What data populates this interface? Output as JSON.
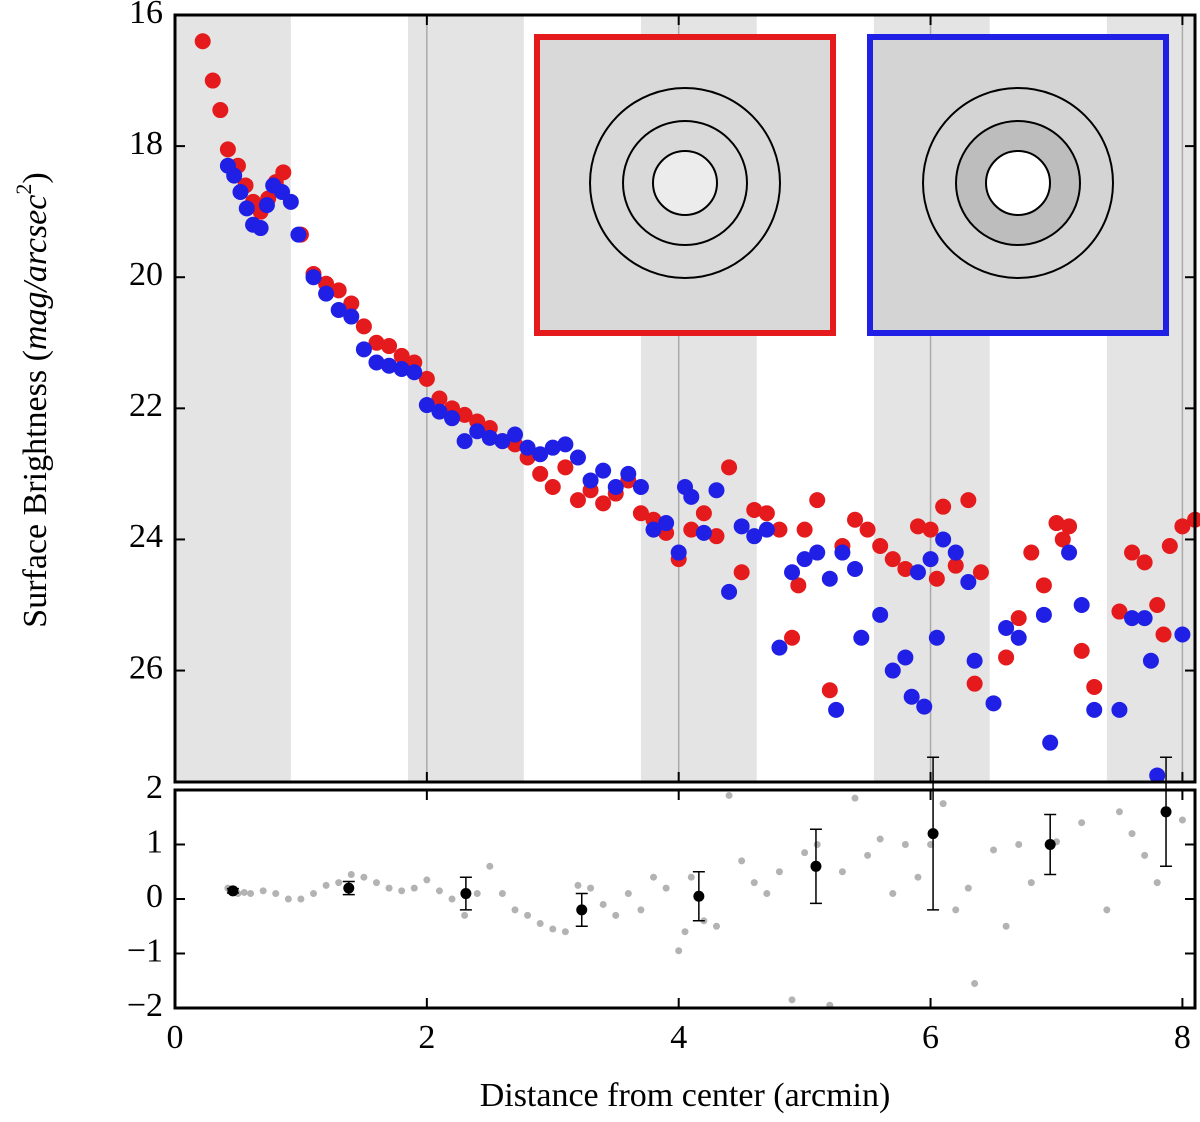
{
  "chart_data": [
    {
      "type": "scatter",
      "ylabel": "Surface Brightness (",
      "ylabel_unit": "mag/arcsec",
      "ylabel_sup": "2",
      "ylabel_end": ")",
      "xlim": [
        0,
        8.1
      ],
      "xticks": [
        0,
        2,
        4,
        6,
        8
      ],
      "ylim": [
        27.7,
        16
      ],
      "yticks": [
        16,
        18,
        20,
        22,
        24,
        26
      ],
      "y_inverted": true,
      "grid": true,
      "bands": [
        [
          0,
          0.92
        ],
        [
          1.85,
          2.77
        ],
        [
          3.7,
          4.62
        ],
        [
          5.55,
          6.47
        ],
        [
          7.4,
          8.1
        ]
      ],
      "band_color": "#e4e4e4",
      "series": [
        {
          "name": null,
          "color": "#e41a1c",
          "x": [
            0.22,
            0.3,
            0.36,
            0.42,
            0.5,
            0.56,
            0.62,
            0.68,
            0.74,
            0.8,
            0.86,
            1.0,
            1.1,
            1.2,
            1.3,
            1.4,
            1.5,
            1.6,
            1.7,
            1.8,
            1.9,
            2.0,
            2.1,
            2.2,
            2.3,
            2.4,
            2.5,
            2.6,
            2.7,
            2.8,
            2.9,
            3.0,
            3.1,
            3.2,
            3.3,
            3.4,
            3.5,
            3.6,
            3.7,
            3.8,
            3.9,
            4.0,
            4.1,
            4.2,
            4.3,
            4.4,
            4.5,
            4.6,
            4.7,
            4.8,
            4.9,
            4.95,
            5.0,
            5.1,
            5.2,
            5.3,
            5.4,
            5.5,
            5.6,
            5.7,
            5.8,
            5.9,
            6.0,
            6.05,
            6.1,
            6.2,
            6.3,
            6.35,
            6.4,
            6.6,
            6.7,
            6.8,
            6.9,
            7.0,
            7.05,
            7.1,
            7.2,
            7.3,
            7.5,
            7.6,
            7.7,
            7.8,
            7.85,
            7.9,
            8.0,
            8.1
          ],
          "values": [
            16.4,
            17.0,
            17.45,
            18.05,
            18.3,
            18.6,
            18.85,
            19.0,
            18.8,
            18.55,
            18.4,
            19.35,
            19.95,
            20.1,
            20.2,
            20.4,
            20.75,
            21.0,
            21.05,
            21.2,
            21.3,
            21.55,
            21.85,
            22.0,
            22.1,
            22.2,
            22.3,
            22.5,
            22.55,
            22.75,
            23.0,
            23.2,
            22.9,
            23.4,
            23.25,
            23.45,
            23.3,
            23.1,
            23.6,
            23.7,
            23.9,
            24.3,
            23.85,
            23.6,
            23.95,
            22.9,
            24.5,
            23.55,
            23.6,
            23.85,
            25.5,
            24.7,
            23.85,
            23.4,
            26.3,
            24.1,
            23.7,
            23.85,
            24.1,
            24.3,
            24.45,
            23.8,
            23.85,
            24.6,
            23.5,
            24.4,
            23.4,
            26.2,
            24.5,
            25.8,
            25.2,
            24.2,
            24.7,
            23.75,
            24.0,
            23.8,
            25.7,
            26.25,
            25.1,
            24.2,
            24.35,
            25.0,
            25.45,
            24.1,
            23.8,
            23.7
          ]
        },
        {
          "name": null,
          "color": "#1f1fe6",
          "x": [
            0.42,
            0.47,
            0.52,
            0.57,
            0.62,
            0.68,
            0.73,
            0.78,
            0.85,
            0.92,
            0.98,
            1.1,
            1.2,
            1.3,
            1.4,
            1.5,
            1.6,
            1.7,
            1.8,
            1.9,
            2.0,
            2.1,
            2.2,
            2.3,
            2.4,
            2.5,
            2.6,
            2.7,
            2.8,
            2.9,
            3.0,
            3.1,
            3.2,
            3.3,
            3.4,
            3.5,
            3.6,
            3.7,
            3.8,
            3.9,
            4.0,
            4.05,
            4.1,
            4.2,
            4.3,
            4.4,
            4.5,
            4.6,
            4.7,
            4.8,
            4.9,
            5.0,
            5.1,
            5.2,
            5.25,
            5.3,
            5.4,
            5.45,
            5.6,
            5.7,
            5.8,
            5.85,
            5.9,
            5.95,
            6.0,
            6.05,
            6.1,
            6.2,
            6.3,
            6.35,
            6.5,
            6.6,
            6.7,
            6.9,
            6.95,
            7.1,
            7.2,
            7.3,
            7.5,
            7.6,
            7.7,
            7.75,
            7.8,
            8.0
          ],
          "values": [
            18.3,
            18.45,
            18.7,
            18.95,
            19.2,
            19.25,
            18.9,
            18.6,
            18.7,
            18.85,
            19.35,
            20.0,
            20.25,
            20.5,
            20.6,
            21.1,
            21.3,
            21.35,
            21.4,
            21.45,
            21.95,
            22.05,
            22.15,
            22.5,
            22.35,
            22.45,
            22.5,
            22.4,
            22.6,
            22.7,
            22.6,
            22.55,
            22.75,
            23.1,
            22.95,
            23.2,
            23.0,
            23.2,
            23.85,
            23.75,
            24.2,
            23.2,
            23.35,
            23.9,
            23.25,
            24.8,
            23.8,
            23.95,
            23.85,
            25.65,
            24.5,
            24.3,
            24.2,
            24.6,
            26.6,
            24.2,
            24.45,
            25.5,
            25.15,
            26.0,
            25.8,
            26.4,
            24.5,
            26.55,
            24.3,
            25.5,
            24.0,
            24.2,
            24.65,
            25.85,
            26.5,
            25.35,
            25.5,
            25.15,
            27.1,
            24.2,
            25.0,
            26.6,
            26.6,
            25.2,
            25.2,
            25.85,
            27.6,
            25.45
          ]
        }
      ]
    },
    {
      "type": "scatter",
      "xlabel": "Distance from center (arcmin)",
      "xlim": [
        0,
        8.1
      ],
      "xticks": [
        0,
        2,
        4,
        6,
        8
      ],
      "ylim": [
        -2,
        2
      ],
      "yticks": [
        {
          "value": -2,
          "label": "−2"
        },
        {
          "value": -1,
          "label": "−1"
        },
        0,
        1,
        2
      ],
      "series": [
        {
          "name": null,
          "color": "#b3b3b3",
          "x": [
            0.42,
            0.5,
            0.55,
            0.6,
            0.7,
            0.8,
            0.9,
            1.0,
            1.1,
            1.2,
            1.3,
            1.4,
            1.5,
            1.6,
            1.7,
            1.8,
            1.9,
            2.0,
            2.1,
            2.2,
            2.3,
            2.4,
            2.5,
            2.6,
            2.7,
            2.8,
            2.9,
            3.0,
            3.1,
            3.2,
            3.3,
            3.4,
            3.5,
            3.6,
            3.7,
            3.8,
            3.9,
            4.0,
            4.05,
            4.1,
            4.2,
            4.3,
            4.4,
            4.5,
            4.6,
            4.7,
            4.8,
            4.9,
            5.0,
            5.1,
            5.2,
            5.3,
            5.4,
            5.5,
            5.6,
            5.7,
            5.8,
            5.9,
            6.0,
            6.1,
            6.2,
            6.3,
            6.35,
            6.5,
            6.6,
            6.7,
            6.8,
            7.0,
            7.2,
            7.4,
            7.5,
            7.6,
            7.7,
            7.8,
            8.0
          ],
          "values": [
            0.2,
            0.1,
            0.12,
            0.1,
            0.15,
            0.1,
            0.0,
            0.0,
            0.1,
            0.25,
            0.3,
            0.45,
            0.4,
            0.3,
            0.2,
            0.15,
            0.2,
            0.35,
            0.15,
            0.0,
            -0.3,
            0.1,
            0.6,
            0.1,
            -0.2,
            -0.3,
            -0.45,
            -0.55,
            -0.6,
            0.25,
            0.2,
            -0.1,
            -0.3,
            0.1,
            -0.2,
            0.4,
            0.2,
            -0.95,
            -0.6,
            0.4,
            -0.4,
            -0.5,
            1.9,
            0.7,
            0.3,
            0.1,
            0.5,
            -1.85,
            0.85,
            1.0,
            -1.95,
            0.5,
            1.85,
            0.8,
            1.1,
            0.1,
            1.0,
            0.4,
            1.0,
            1.75,
            -0.2,
            0.2,
            -1.55,
            0.9,
            -0.5,
            1.0,
            0.3,
            1.05,
            1.4,
            -0.2,
            1.6,
            1.2,
            0.8,
            0.3,
            1.45
          ]
        },
        {
          "name": null,
          "color": "#000000",
          "x": [
            0.46,
            1.38,
            2.31,
            3.23,
            4.16,
            5.09,
            6.02,
            6.95,
            7.87
          ],
          "values": [
            0.15,
            0.2,
            0.1,
            -0.2,
            0.05,
            0.6,
            1.2,
            1.0,
            1.6
          ],
          "errors": [
            0.04,
            0.12,
            0.3,
            0.3,
            0.45,
            0.68,
            1.4,
            0.55,
            1.0
          ]
        }
      ]
    }
  ]
}
